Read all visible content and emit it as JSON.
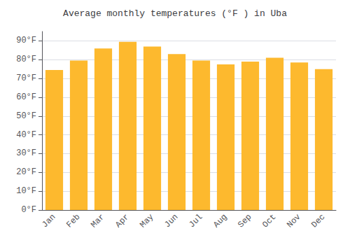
{
  "chart_data": {
    "type": "bar",
    "title": "Average monthly temperatures (°F ) in Uba",
    "categories": [
      "Jan",
      "Feb",
      "Mar",
      "Apr",
      "May",
      "Jun",
      "Jul",
      "Aug",
      "Sep",
      "Oct",
      "Nov",
      "Dec"
    ],
    "values": [
      74.5,
      79.5,
      86.0,
      89.5,
      87.0,
      83.0,
      79.5,
      77.5,
      79.0,
      81.0,
      78.5,
      75.0
    ],
    "color": "#FDB92E",
    "ylim": [
      0,
      95
    ],
    "yticks": [
      {
        "value": 0,
        "label": "0°F"
      },
      {
        "value": 10,
        "label": "10°F"
      },
      {
        "value": 20,
        "label": "20°F"
      },
      {
        "value": 30,
        "label": "30°F"
      },
      {
        "value": 40,
        "label": "40°F"
      },
      {
        "value": 50,
        "label": "50°F"
      },
      {
        "value": 60,
        "label": "60°F"
      },
      {
        "value": 70,
        "label": "70°F"
      },
      {
        "value": 80,
        "label": "80°F"
      },
      {
        "value": 90,
        "label": "90°F"
      }
    ],
    "grid": true
  }
}
